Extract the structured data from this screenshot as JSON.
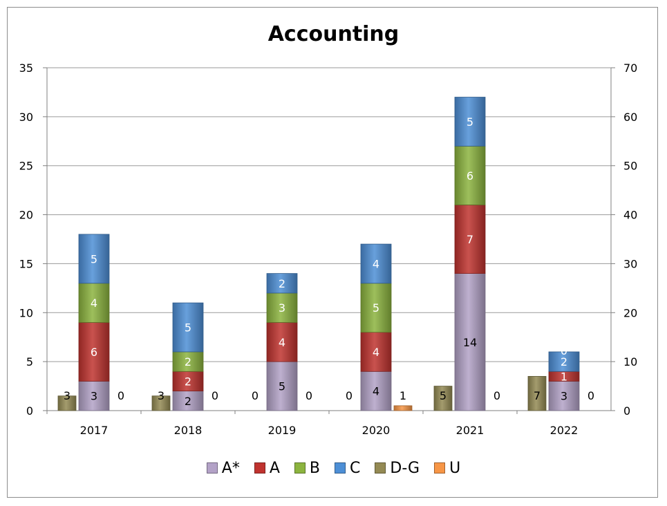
{
  "chart_data": {
    "type": "bar",
    "title": "Accounting",
    "categories": [
      "2017",
      "2018",
      "2019",
      "2020",
      "2021",
      "2022"
    ],
    "ylim": [
      0,
      35
    ],
    "y2lim": [
      0,
      70
    ],
    "yticks": [
      "0",
      "5",
      "10",
      "15",
      "20",
      "25",
      "30",
      "35"
    ],
    "y2ticks": [
      "0",
      "10",
      "20",
      "30",
      "40",
      "50",
      "60",
      "70"
    ],
    "grid": true,
    "legend_position": "bottom",
    "stacked_series": [
      {
        "name": "A*",
        "color": "#b3a2c7",
        "values": [
          3,
          2,
          5,
          4,
          14,
          3
        ]
      },
      {
        "name": "A",
        "color": "#c0332f",
        "values": [
          6,
          2,
          4,
          4,
          7,
          1
        ]
      },
      {
        "name": "B",
        "color": "#8cb43f",
        "values": [
          4,
          2,
          3,
          5,
          6,
          0
        ]
      },
      {
        "name": "C",
        "color": "#4d8fd6",
        "values": [
          5,
          5,
          2,
          4,
          5,
          2
        ]
      }
    ],
    "side_series": [
      {
        "name": "D-G",
        "color": "#948a54",
        "values": [
          3,
          3,
          0,
          0,
          5,
          7
        ],
        "axis": "secondary",
        "position": "left"
      },
      {
        "name": "U",
        "color": "#f79646",
        "values": [
          0,
          0,
          0,
          1,
          0,
          0
        ],
        "axis": "secondary",
        "position": "right"
      }
    ]
  },
  "legend": [
    {
      "label": "A*",
      "color": "#b3a2c7"
    },
    {
      "label": "A",
      "color": "#c0332f"
    },
    {
      "label": "B",
      "color": "#8cb43f"
    },
    {
      "label": "C",
      "color": "#4d8fd6"
    },
    {
      "label": "D-G",
      "color": "#948a54"
    },
    {
      "label": "U",
      "color": "#f79646"
    }
  ]
}
